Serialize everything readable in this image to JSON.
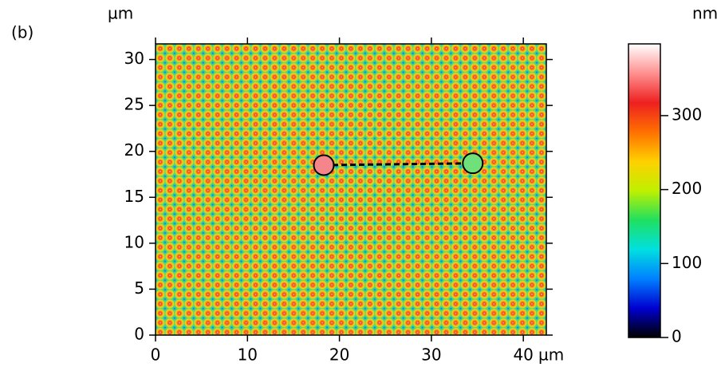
{
  "chart_data": {
    "type": "heatmap",
    "panel_label": "(b)",
    "xlabel": "µm",
    "ylabel": "µm",
    "xlim": [
      0,
      42.5
    ],
    "xticks": [
      0,
      10,
      20,
      30,
      40
    ],
    "ylim": [
      0,
      31.7
    ],
    "yticks": [
      0,
      5,
      10,
      15,
      20,
      25,
      30
    ],
    "colorbar": {
      "label": "nm",
      "lim": [
        0,
        397
      ],
      "ticks": [
        0,
        100,
        200,
        300
      ],
      "colormap": [
        "#000000",
        "#0000d0",
        "#0080ff",
        "#00e0e0",
        "#20e060",
        "#c0f000",
        "#ffd000",
        "#ff7000",
        "#ee2020",
        "#ff9090",
        "#ffffff"
      ]
    },
    "markers": {
      "x": [
        18.3,
        34.5
      ],
      "y": [
        18.5,
        18.7
      ],
      "colors": [
        "#f4858a",
        "#6fe07a"
      ]
    }
  }
}
